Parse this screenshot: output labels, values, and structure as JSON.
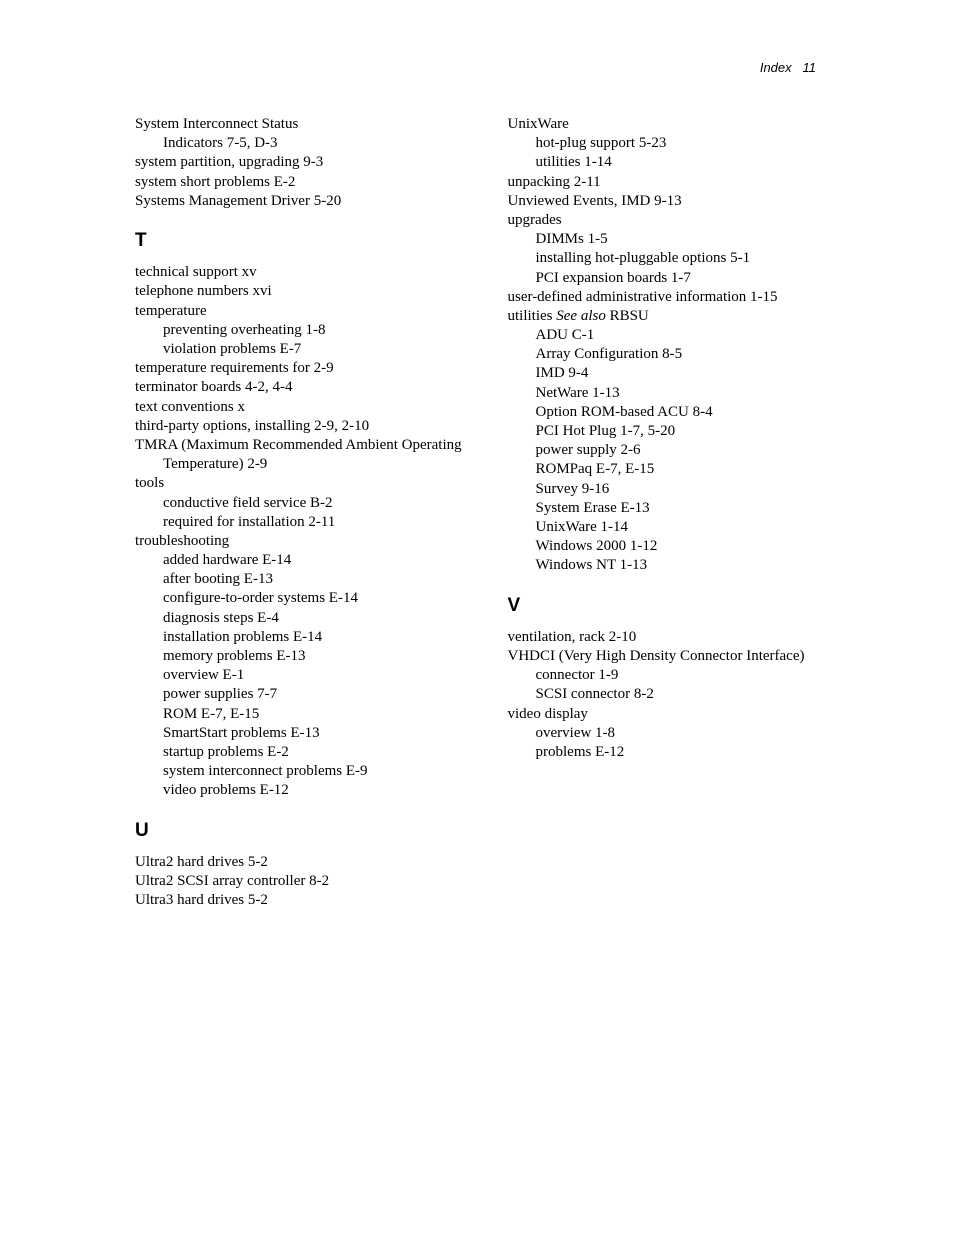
{
  "header": {
    "label": "Index",
    "page": "11"
  },
  "left": {
    "pre": [
      {
        "t": "System Interconnect Status",
        "cls": "lvl0"
      },
      {
        "t": "Indicators   7-5, D-3",
        "cls": "lvl1"
      },
      {
        "t": "system partition, upgrading   9-3",
        "cls": "lvl0"
      },
      {
        "t": "system short problems   E-2",
        "cls": "lvl0"
      },
      {
        "t": "Systems Management Driver   5-20",
        "cls": "lvl0"
      }
    ],
    "T": [
      {
        "t": "technical support   xv",
        "cls": "lvl0"
      },
      {
        "t": "telephone numbers   xvi",
        "cls": "lvl0"
      },
      {
        "t": "temperature",
        "cls": "lvl0"
      },
      {
        "t": "preventing overheating   1-8",
        "cls": "lvl1"
      },
      {
        "t": "violation problems   E-7",
        "cls": "lvl1"
      },
      {
        "t": "temperature requirements for   2-9",
        "cls": "lvl0"
      },
      {
        "t": "terminator boards   4-2, 4-4",
        "cls": "lvl0"
      },
      {
        "t": "text conventions   x",
        "cls": "lvl0"
      },
      {
        "t": "third-party options, installing   2-9, 2-10",
        "cls": "wrap0"
      },
      {
        "t": "TMRA (Maximum Recommended Ambient Operating Temperature)   2-9",
        "cls": "wrap0"
      },
      {
        "t": "tools",
        "cls": "lvl0"
      },
      {
        "t": "conductive field service   B-2",
        "cls": "lvl1"
      },
      {
        "t": "required for installation   2-11",
        "cls": "lvl1"
      },
      {
        "t": "troubleshooting",
        "cls": "lvl0"
      },
      {
        "t": "added hardware   E-14",
        "cls": "lvl1"
      },
      {
        "t": "after booting   E-13",
        "cls": "lvl1"
      },
      {
        "t": "configure-to-order systems   E-14",
        "cls": "wrap1"
      },
      {
        "t": "diagnosis steps   E-4",
        "cls": "lvl1"
      },
      {
        "t": "installation problems   E-14",
        "cls": "lvl1"
      },
      {
        "t": "memory problems   E-13",
        "cls": "lvl1"
      },
      {
        "t": "overview   E-1",
        "cls": "lvl1"
      },
      {
        "t": "power supplies   7-7",
        "cls": "lvl1"
      },
      {
        "t": "ROM   E-7, E-15",
        "cls": "lvl1"
      },
      {
        "t": "SmartStart problems   E-13",
        "cls": "lvl1"
      },
      {
        "t": "startup problems   E-2",
        "cls": "lvl1"
      },
      {
        "t": "system interconnect problems   E-9",
        "cls": "wrap1"
      },
      {
        "t": "video problems   E-12",
        "cls": "lvl1"
      }
    ],
    "U": [
      {
        "t": "Ultra2 hard drives   5-2",
        "cls": "lvl0"
      },
      {
        "t": "Ultra2 SCSI array controller   8-2",
        "cls": "lvl0"
      },
      {
        "t": "Ultra3 hard drives   5-2",
        "cls": "lvl0"
      }
    ]
  },
  "right": {
    "pre": [
      {
        "t": "UnixWare",
        "cls": "lvl0"
      },
      {
        "t": "hot-plug support   5-23",
        "cls": "lvl1"
      },
      {
        "t": "utilities   1-14",
        "cls": "lvl1"
      },
      {
        "t": "unpacking   2-11",
        "cls": "lvl0"
      },
      {
        "t": "Unviewed Events, IMD   9-13",
        "cls": "lvl0"
      },
      {
        "t": "upgrades",
        "cls": "lvl0"
      },
      {
        "t": "DIMMs   1-5",
        "cls": "lvl1"
      },
      {
        "t": "installing hot-pluggable options   5-1",
        "cls": "wrap1"
      },
      {
        "t": "PCI expansion boards   1-7",
        "cls": "lvl1"
      },
      {
        "t": "user-defined administrative information   1-15",
        "cls": "wrap0"
      },
      {
        "prefix": "utilities   ",
        "seealso": "See also",
        "suffix": " RBSU",
        "cls": "lvl0"
      },
      {
        "t": "ADU   C-1",
        "cls": "lvl1"
      },
      {
        "t": "Array Configuration   8-5",
        "cls": "lvl1"
      },
      {
        "t": "IMD   9-4",
        "cls": "lvl1"
      },
      {
        "t": "NetWare   1-13",
        "cls": "lvl1"
      },
      {
        "t": "Option ROM-based ACU   8-4",
        "cls": "lvl1"
      },
      {
        "t": "PCI Hot Plug   1-7, 5-20",
        "cls": "lvl1"
      },
      {
        "t": "power supply   2-6",
        "cls": "lvl1"
      },
      {
        "t": "ROMPaq   E-7, E-15",
        "cls": "lvl1"
      },
      {
        "t": "Survey   9-16",
        "cls": "lvl1"
      },
      {
        "t": "System Erase   E-13",
        "cls": "lvl1"
      },
      {
        "t": "UnixWare   1-14",
        "cls": "lvl1"
      },
      {
        "t": "Windows 2000   1-12",
        "cls": "lvl1"
      },
      {
        "t": "Windows NT   1-13",
        "cls": "lvl1"
      }
    ],
    "V": [
      {
        "t": "ventilation, rack   2-10",
        "cls": "lvl0"
      },
      {
        "t": "VHDCI (Very High Density Connector Interface)",
        "cls": "wrap0"
      },
      {
        "t": "connector   1-9",
        "cls": "lvl1"
      },
      {
        "t": "SCSI connector   8-2",
        "cls": "lvl1"
      },
      {
        "t": "video display",
        "cls": "lvl0"
      },
      {
        "t": "overview   1-8",
        "cls": "lvl1"
      },
      {
        "t": "problems   E-12",
        "cls": "lvl1"
      }
    ]
  },
  "letters": {
    "T": "T",
    "U": "U",
    "V": "V"
  }
}
